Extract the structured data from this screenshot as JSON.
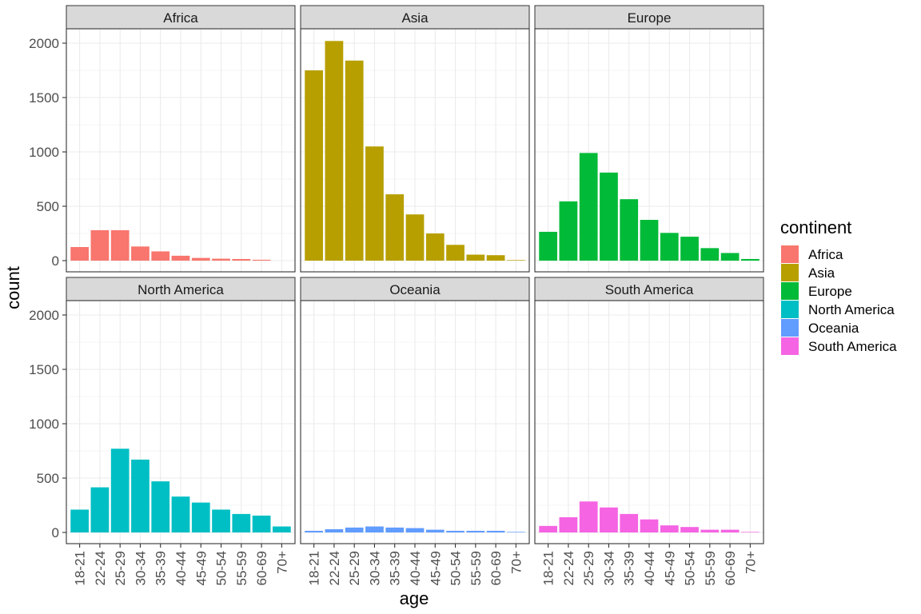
{
  "chart_data": {
    "type": "bar",
    "facet_by": "continent",
    "xlabel": "age",
    "ylabel": "count",
    "ylim": [
      0,
      2100
    ],
    "yticks": [
      0,
      500,
      1000,
      1500,
      2000
    ],
    "categories": [
      "18-21",
      "22-24",
      "25-29",
      "30-34",
      "35-39",
      "40-44",
      "45-49",
      "50-54",
      "55-59",
      "60-69",
      "70+"
    ],
    "grid": true,
    "legend_position": "right",
    "legend_title": "continent",
    "series": [
      {
        "name": "Africa",
        "color": "#F8766D",
        "values": [
          125,
          280,
          280,
          130,
          85,
          45,
          25,
          18,
          15,
          8,
          0
        ]
      },
      {
        "name": "Asia",
        "color": "#B79F00",
        "values": [
          1750,
          2020,
          1840,
          1050,
          610,
          425,
          250,
          145,
          55,
          50,
          5
        ]
      },
      {
        "name": "Europe",
        "color": "#00BA38",
        "values": [
          265,
          545,
          990,
          810,
          565,
          375,
          255,
          220,
          115,
          70,
          15
        ]
      },
      {
        "name": "North America",
        "color": "#00BFC4",
        "values": [
          210,
          415,
          770,
          670,
          470,
          330,
          275,
          210,
          170,
          155,
          55
        ]
      },
      {
        "name": "Oceania",
        "color": "#619CFF",
        "values": [
          15,
          30,
          45,
          55,
          45,
          40,
          25,
          15,
          15,
          15,
          5
        ]
      },
      {
        "name": "South America",
        "color": "#F564E3",
        "values": [
          60,
          140,
          285,
          230,
          170,
          120,
          65,
          50,
          25,
          25,
          5
        ]
      }
    ]
  }
}
